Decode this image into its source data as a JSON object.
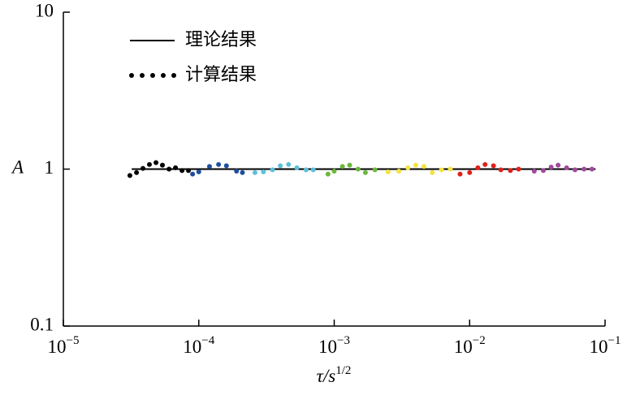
{
  "chart_data": {
    "type": "scatter",
    "log_x": true,
    "log_y": true,
    "ylabel": "A",
    "xlabel": "τ/s",
    "xlabel_sup": "1/2",
    "xlim": [
      1e-05,
      0.1
    ],
    "xticks": [
      {
        "value": 1e-05,
        "label": "10",
        "exponent": "−5"
      },
      {
        "value": 0.0001,
        "label": "10",
        "exponent": "−4"
      },
      {
        "value": 0.001,
        "label": "10",
        "exponent": "−3"
      },
      {
        "value": 0.01,
        "label": "10",
        "exponent": "−2"
      },
      {
        "value": 0.1,
        "label": "10",
        "exponent": "−1"
      }
    ],
    "ylim": [
      0.1,
      10
    ],
    "yticks": [
      0.1,
      1,
      10
    ],
    "legend": "upper-left",
    "series": [
      {
        "name": "理论结果",
        "style": "line",
        "color": "#000000",
        "x": [
          3.2e-05,
          0.085
        ],
        "values": [
          1,
          1
        ]
      },
      {
        "name": "计算结果",
        "style": "dots",
        "groups": [
          {
            "color": "#000000",
            "x": [
              3.1e-05,
              3.47e-05,
              3.87e-05,
              4.32e-05,
              4.83e-05,
              5.39e-05,
              6.03e-05,
              6.73e-05,
              7.52e-05,
              8.39e-05
            ],
            "values": [
              0.91,
              0.95,
              1.01,
              1.07,
              1.1,
              1.06,
              1.0,
              1.02,
              0.98,
              0.98
            ]
          },
          {
            "color": "#1f4e9c",
            "x": [
              9e-05,
              0.0001,
              0.00012,
              0.00014,
              0.00016,
              0.00019,
              0.00021
            ],
            "values": [
              0.93,
              0.96,
              1.04,
              1.07,
              1.05,
              0.97,
              0.95
            ]
          },
          {
            "color": "#5bc0d8",
            "x": [
              0.00026,
              0.0003,
              0.00035,
              0.0004,
              0.00046,
              0.00053,
              0.00062,
              0.0007
            ],
            "values": [
              0.95,
              0.96,
              0.99,
              1.05,
              1.07,
              1.02,
              0.99,
              0.99
            ]
          },
          {
            "color": "#6bb83a",
            "x": [
              0.0009,
              0.001,
              0.00115,
              0.0013,
              0.0015,
              0.0017,
              0.002
            ],
            "values": [
              0.93,
              0.97,
              1.04,
              1.06,
              1.0,
              0.95,
              0.99
            ]
          },
          {
            "color": "#f2e340",
            "x": [
              0.0025,
              0.003,
              0.0035,
              0.004,
              0.0046,
              0.0053,
              0.0062,
              0.0072
            ],
            "values": [
              0.96,
              0.97,
              1.02,
              1.06,
              1.04,
              0.95,
              0.99,
              1.0
            ]
          },
          {
            "color": "#e0201b",
            "x": [
              0.0085,
              0.01,
              0.0115,
              0.013,
              0.015,
              0.017,
              0.02,
              0.023
            ],
            "values": [
              0.93,
              0.95,
              1.02,
              1.07,
              1.05,
              0.99,
              0.98,
              1.0
            ]
          },
          {
            "color": "#a04a9e",
            "x": [
              0.03,
              0.035,
              0.04,
              0.045,
              0.052,
              0.06,
              0.07,
              0.08
            ],
            "values": [
              0.97,
              0.98,
              1.03,
              1.06,
              1.02,
              0.99,
              1.0,
              1.0
            ]
          }
        ]
      }
    ]
  }
}
